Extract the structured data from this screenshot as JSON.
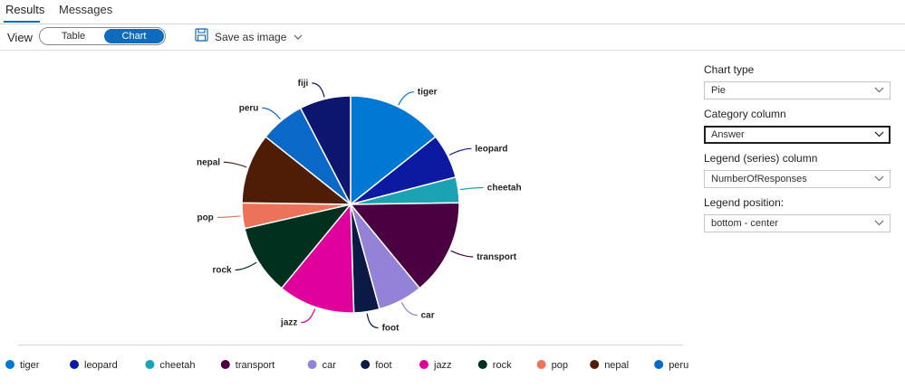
{
  "tabs": [
    {
      "label": "Results",
      "active": true
    },
    {
      "label": "Messages",
      "active": false
    }
  ],
  "toolbar": {
    "view_label": "View",
    "view_options": [
      "Table",
      "Chart"
    ],
    "selected_view": "Chart",
    "save_label": "Save as image",
    "save_icon": "save-icon",
    "accent": "#0f6cbd"
  },
  "settings": {
    "chart_type_label": "Chart type",
    "chart_type_value": "Pie",
    "category_label": "Category column",
    "category_value": "Answer",
    "legend_series_label": "Legend (series) column",
    "legend_series_value": "NumberOfResponses",
    "legend_position_label": "Legend position:",
    "legend_position_value": "bottom - center"
  },
  "chart_data": {
    "type": "pie",
    "title": "",
    "legend_position": "bottom-center",
    "slices": [
      {
        "label": "tiger",
        "value": 15,
        "color": "#0078d4"
      },
      {
        "label": "leopard",
        "value": 7,
        "color": "#0b1aa0"
      },
      {
        "label": "cheetah",
        "value": 4,
        "color": "#1ba2b5"
      },
      {
        "label": "transport",
        "value": 15,
        "color": "#4b0041"
      },
      {
        "label": "car",
        "value": 7,
        "color": "#9482d8"
      },
      {
        "label": "foot",
        "value": 4,
        "color": "#0b1a45"
      },
      {
        "label": "jazz",
        "value": 12,
        "color": "#e0009b"
      },
      {
        "label": "rock",
        "value": 11,
        "color": "#01301f"
      },
      {
        "label": "pop",
        "value": 4,
        "color": "#ec735a"
      },
      {
        "label": "nepal",
        "value": 11,
        "color": "#4f1c06"
      },
      {
        "label": "peru",
        "value": 7,
        "color": "#0a68c8"
      },
      {
        "label": "fiji",
        "value": 8,
        "color": "#0c166e"
      }
    ]
  }
}
